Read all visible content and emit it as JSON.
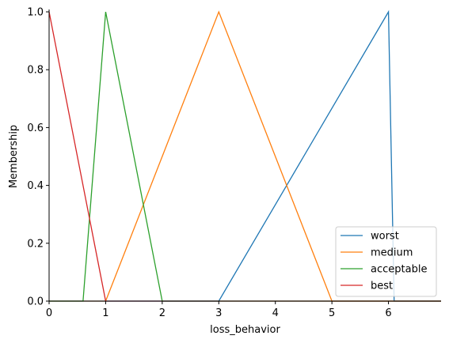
{
  "chart_data": {
    "type": "line",
    "title": "",
    "xlabel": "loss_behavior",
    "ylabel": "Membership",
    "xlim": [
      0,
      6.93
    ],
    "ylim": [
      0,
      1.0
    ],
    "x_ticks": [
      0,
      1,
      2,
      3,
      4,
      5,
      6
    ],
    "y_ticks": [
      0.0,
      0.2,
      0.4,
      0.6,
      0.8,
      1.0
    ],
    "x_tick_labels": [
      "0",
      "1",
      "2",
      "3",
      "4",
      "5",
      "6"
    ],
    "y_tick_labels": [
      "0.0",
      "0.2",
      "0.4",
      "0.6",
      "0.8",
      "1.0"
    ],
    "grid": false,
    "legend_position": "bottom-right",
    "series": [
      {
        "name": "worst",
        "color": "#1f77b4",
        "points": [
          [
            0,
            0
          ],
          [
            3,
            0
          ],
          [
            6,
            1
          ],
          [
            6.1,
            0
          ],
          [
            6.93,
            0
          ]
        ]
      },
      {
        "name": "medium",
        "color": "#ff7f0e",
        "points": [
          [
            0,
            0
          ],
          [
            1,
            0
          ],
          [
            3,
            1
          ],
          [
            5,
            0
          ],
          [
            6.93,
            0
          ]
        ]
      },
      {
        "name": "acceptable",
        "color": "#2ca02c",
        "points": [
          [
            0,
            0
          ],
          [
            0.6,
            0
          ],
          [
            1,
            1
          ],
          [
            2,
            0
          ],
          [
            6.93,
            0
          ]
        ]
      },
      {
        "name": "best",
        "color": "#d62728",
        "points": [
          [
            0,
            1
          ],
          [
            1,
            0
          ],
          [
            6.93,
            0
          ]
        ]
      }
    ]
  }
}
